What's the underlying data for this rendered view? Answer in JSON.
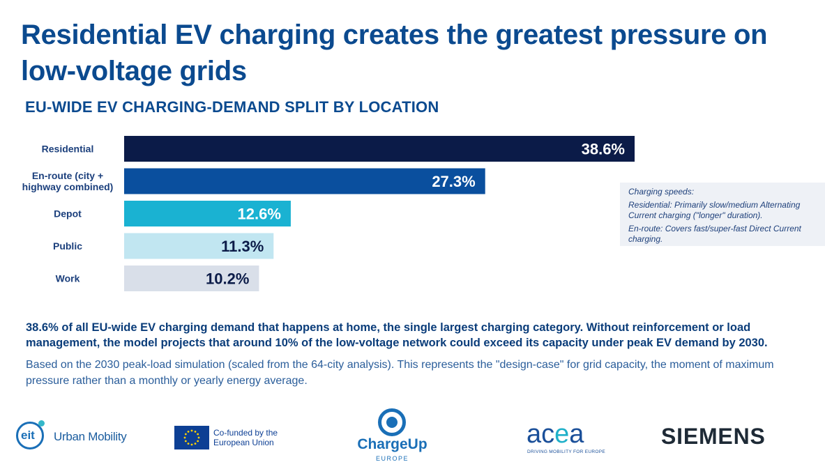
{
  "title": "Residential EV charging creates the greatest pressure on low-voltage grids",
  "chart_data": {
    "type": "bar",
    "orientation": "horizontal",
    "title": "EU-WIDE EV CHARGING-DEMAND SPLIT BY LOCATION",
    "categories": [
      "Residential",
      "En-route (city + highway combined)",
      "Depot",
      "Public",
      "Work"
    ],
    "category_lines": [
      [
        "Residential"
      ],
      [
        "En-route (city +",
        "highway combined)"
      ],
      [
        "Depot"
      ],
      [
        "Public"
      ],
      [
        "Work"
      ]
    ],
    "values": [
      38.6,
      27.3,
      12.6,
      11.3,
      10.2
    ],
    "value_labels": [
      "38.6%",
      "27.3%",
      "12.6%",
      "11.3%",
      "10.2%"
    ],
    "unit": "%",
    "colors": [
      "#0b1b48",
      "#0a4f9e",
      "#1ab2d2",
      "#c1e6f1",
      "#d9dfe9"
    ],
    "label_colors": [
      "#ffffff",
      "#ffffff",
      "#ffffff",
      "#0b1b48",
      "#0b1b48"
    ],
    "xlim": [
      0,
      38.6
    ],
    "grid": false,
    "legend": "none"
  },
  "note": {
    "lines": [
      "Charging speeds:",
      "Residential: Primarily slow/medium Alternating Current charging (\"longer\" duration).",
      "En-route: Covers fast/super-fast Direct Current charging."
    ]
  },
  "summary": {
    "bold": "38.6%  of all EU-wide EV charging demand that happens at home, the single largest charging category. Without reinforcement or load management, the model projects that around 10% of the low-voltage network could exceed its capacity under peak EV demand by 2030.",
    "plain": "Based on the 2030 peak-load simulation (scaled from the 64-city analysis). This represents the \"design-case\" for grid capacity, the moment of maximum pressure rather than a monthly or yearly energy average."
  },
  "logos": {
    "eit": {
      "mark": "eit",
      "name": "Urban Mobility"
    },
    "eu": {
      "line1": "Co-funded by the",
      "line2": "European Union"
    },
    "chargeup": {
      "name": "ChargeUp",
      "sub": "EUROPE"
    },
    "acea": {
      "name_a1": "ac",
      "name_e": "e",
      "name_a2": "a",
      "sub": "DRIVING MOBILITY FOR EUROPE"
    },
    "siemens": {
      "name": "SIEMENS"
    }
  }
}
